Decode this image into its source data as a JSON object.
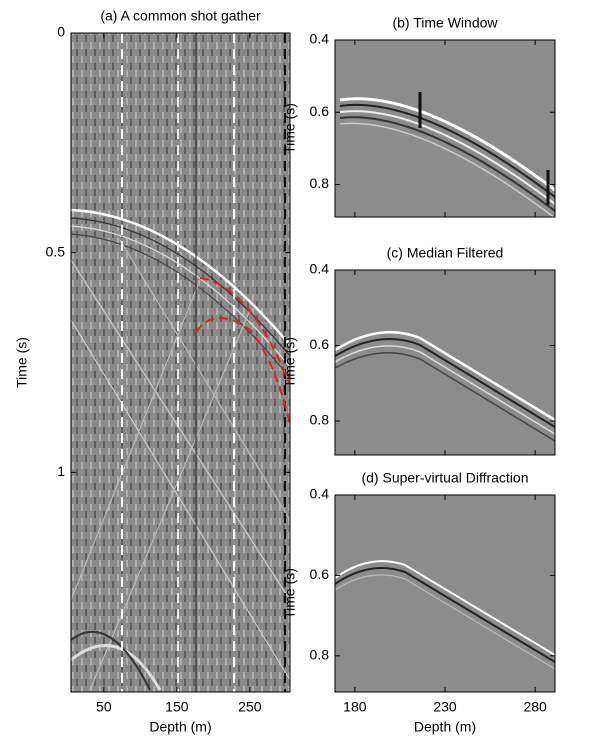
{
  "chart_data": [
    {
      "type": "image",
      "title": "(a) A common shot gather",
      "xlabel": "Depth (m)",
      "ylabel": "Time (s)",
      "xlim": [
        5,
        305
      ],
      "ylim": [
        0,
        1.5
      ],
      "xticks": [
        50,
        150,
        250
      ],
      "yticks": [
        0,
        0.5,
        1
      ]
    },
    {
      "type": "image",
      "title": "(b) Time Window",
      "ylabel": "Time (s)",
      "ylim": [
        0.4,
        0.89
      ],
      "yticks": [
        0.4,
        0.6,
        0.8
      ]
    },
    {
      "type": "image",
      "title": "(c) Median Filtered",
      "ylabel": "Time (s)",
      "ylim": [
        0.4,
        0.89
      ],
      "yticks": [
        0.4,
        0.6,
        0.8
      ]
    },
    {
      "type": "image",
      "title": "(d) Super-virtual Diffraction",
      "xlabel": "Depth (m)",
      "ylabel": "Time (s)",
      "xlim": [
        169,
        291
      ],
      "ylim": [
        0.4,
        0.89
      ],
      "xticks": [
        180,
        230,
        280
      ],
      "yticks": [
        0.4,
        0.6,
        0.8
      ]
    }
  ]
}
